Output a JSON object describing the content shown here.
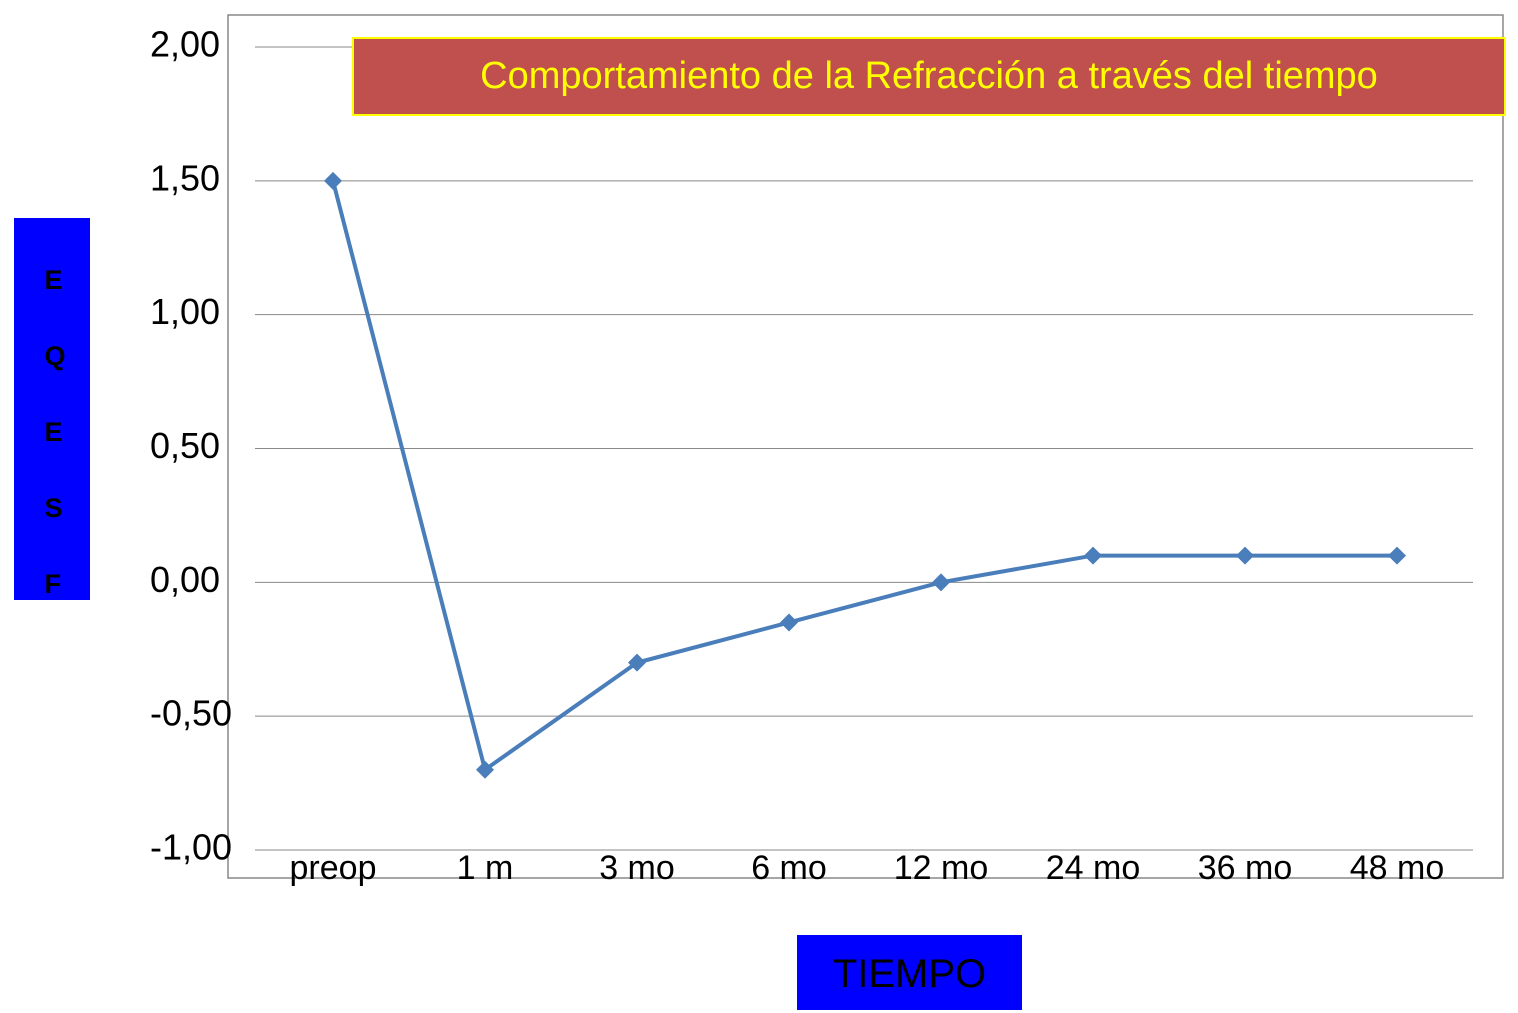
{
  "chart_data": {
    "type": "line",
    "title": "Comportamiento de la Refracción a través del tiempo",
    "y_label": "EQESF",
    "x_label": "TIEMPO",
    "categories": [
      "preop",
      "1 m",
      "3 mo",
      "6 mo",
      "12 mo",
      "24 mo",
      "36 mo",
      "48 mo"
    ],
    "series": [
      {
        "name": "EQESF",
        "color": "#4a7ebb",
        "values": [
          1.5,
          -0.7,
          -0.3,
          -0.15,
          0.0,
          0.1,
          0.1,
          0.1
        ]
      }
    ],
    "ylim": [
      -1,
      2
    ],
    "yticks": [
      {
        "value": -1,
        "label": "-1,00"
      },
      {
        "value": -0.5,
        "label": "-0,50"
      },
      {
        "value": 0,
        "label": "0,00"
      },
      {
        "value": 0.5,
        "label": "0,50"
      },
      {
        "value": 1,
        "label": "1,00"
      },
      {
        "value": 1.5,
        "label": "1,50"
      },
      {
        "value": 2,
        "label": "2,00"
      }
    ],
    "grid": true,
    "legend": false
  }
}
